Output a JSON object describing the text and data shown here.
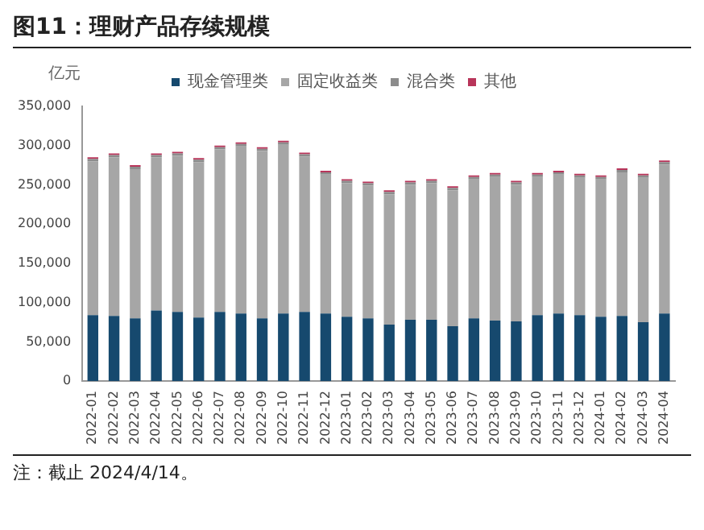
{
  "chart_data": {
    "type": "bar",
    "title": "图11：理财产品存续规模",
    "ylabel": "亿元",
    "stacked": true,
    "legend": "top",
    "categories": [
      "2022-01",
      "2022-02",
      "2022-03",
      "2022-04",
      "2022-05",
      "2022-06",
      "2022-07",
      "2022-08",
      "2022-09",
      "2022-10",
      "2022-11",
      "2022-12",
      "2023-01",
      "2023-02",
      "2023-03",
      "2023-04",
      "2023-05",
      "2023-06",
      "2023-07",
      "2023-08",
      "2023-09",
      "2023-10",
      "2023-11",
      "2023-12",
      "2024-01",
      "2024-02",
      "2024-03",
      "2024-04"
    ],
    "series": [
      {
        "name": "现金管理类",
        "color": "#16496e",
        "values": [
          84000,
          83000,
          80000,
          90000,
          88000,
          81000,
          88000,
          86000,
          80000,
          86000,
          88000,
          86000,
          82000,
          80000,
          72000,
          78000,
          78000,
          70000,
          80000,
          77000,
          76000,
          84000,
          86000,
          84000,
          82000,
          83000,
          75000,
          86000
        ]
      },
      {
        "name": "固定收益类",
        "color": "#a6a6a6",
        "values": [
          196000,
          202000,
          190000,
          195000,
          199000,
          198000,
          207000,
          213000,
          213000,
          215000,
          198000,
          177000,
          170000,
          169000,
          166000,
          172000,
          174000,
          173000,
          177000,
          183000,
          174000,
          176000,
          177000,
          175000,
          175000,
          183000,
          184000,
          190000
        ]
      },
      {
        "name": "混合类",
        "color": "#8c8c8c",
        "values": [
          3000,
          3000,
          3000,
          3000,
          3000,
          3000,
          3000,
          3000,
          3000,
          3000,
          3000,
          3000,
          3000,
          3000,
          3000,
          3000,
          3000,
          3000,
          3000,
          3000,
          3000,
          3000,
          3000,
          3000,
          3000,
          3000,
          3000,
          3000
        ]
      },
      {
        "name": "其他",
        "color": "#b8355a",
        "values": [
          1000,
          1000,
          1000,
          1000,
          1000,
          1000,
          1000,
          1000,
          1000,
          1000,
          1000,
          1000,
          1000,
          1000,
          1000,
          1000,
          1000,
          1000,
          1000,
          1000,
          1000,
          1000,
          1000,
          1000,
          1000,
          1000,
          1000,
          1000
        ]
      }
    ],
    "ylim": [
      0,
      350000
    ],
    "yticks": [
      0,
      {
        "value": 50000,
        "label": "50,000"
      },
      {
        "value": 100000,
        "label": "100,000"
      },
      {
        "value": 150000,
        "label": "150,000"
      },
      {
        "value": 200000,
        "label": "200,000"
      },
      {
        "value": 250000,
        "label": "250,000"
      },
      {
        "value": 300000,
        "label": "300,000"
      },
      {
        "value": 350000,
        "label": "350,000"
      }
    ],
    "annotations": [
      "注：截止 2024/4/14。"
    ]
  }
}
